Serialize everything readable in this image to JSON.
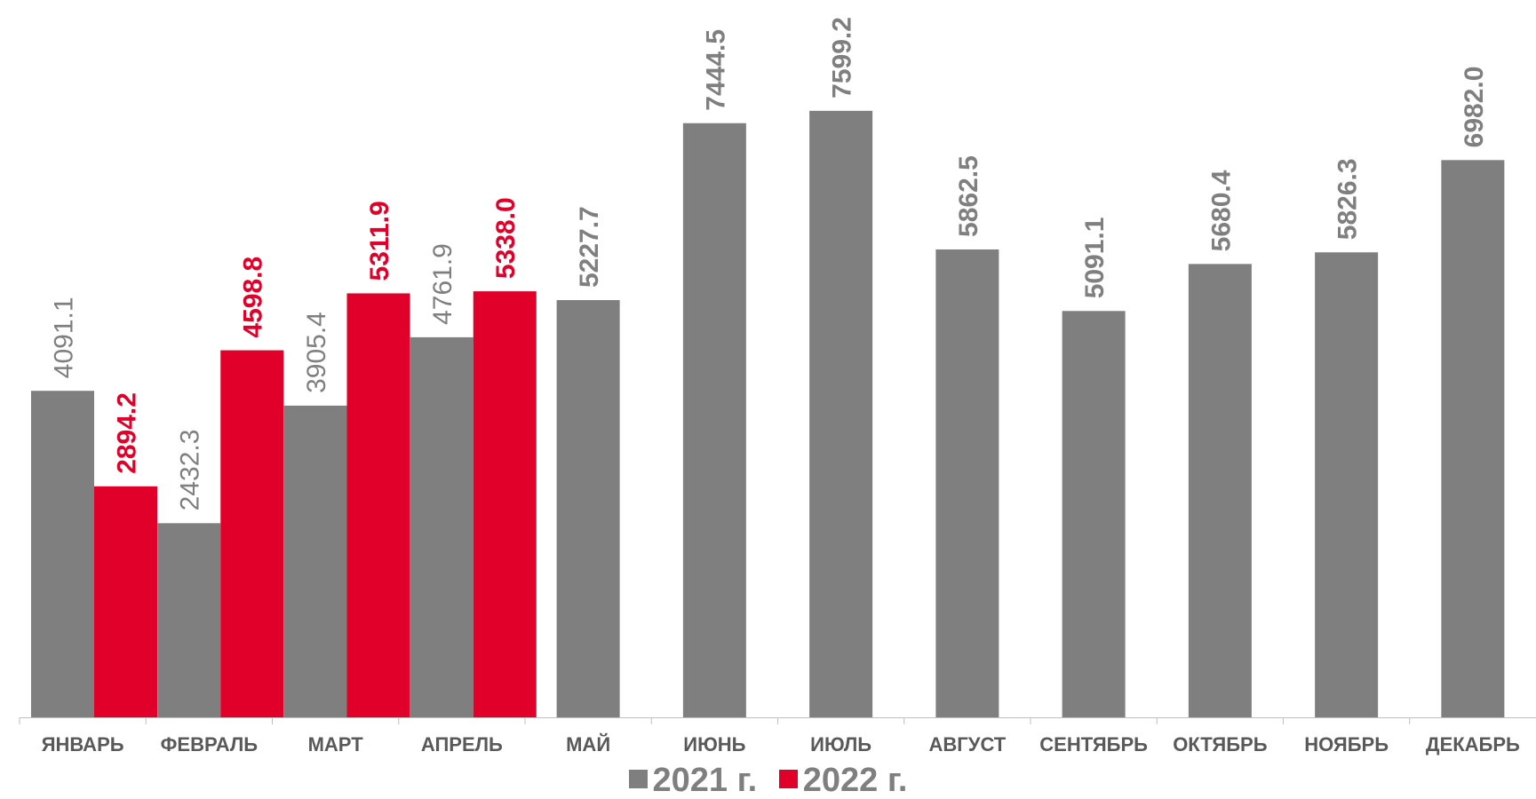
{
  "chart_data": {
    "type": "bar",
    "categories": [
      "ЯНВАРЬ",
      "ФЕВРАЛЬ",
      "МАРТ",
      "АПРЕЛЬ",
      "МАЙ",
      "ИЮНЬ",
      "ИЮЛЬ",
      "АВГУСТ",
      "СЕНТЯБРЬ",
      "ОКТЯБРЬ",
      "НОЯБРЬ",
      "ДЕКАБРЬ"
    ],
    "series": [
      {
        "name": "2021 г.",
        "color": "#7f7f7f",
        "values": [
          4091.1,
          2432.3,
          3905.4,
          4761.9,
          5227.7,
          7444.5,
          7599.2,
          5862.5,
          5091.1,
          5680.4,
          5826.3,
          6982.0
        ],
        "labels": [
          "4091.1",
          "2432.3",
          "3905.4",
          "4761.9",
          "5227.7",
          "7444.5",
          "7599.2",
          "5862.5",
          "5091.1",
          "5680.4",
          "5826.3",
          "6982.0"
        ]
      },
      {
        "name": "2022 г.",
        "color": "#e0002a",
        "values": [
          2894.2,
          4598.8,
          5311.9,
          5338.0,
          null,
          null,
          null,
          null,
          null,
          null,
          null,
          null
        ],
        "labels": [
          "2894.2",
          "4598.8",
          "5311.9",
          "5338.0",
          "",
          "",
          "",
          "",
          "",
          "",
          "",
          ""
        ]
      }
    ],
    "ylim": [
      0,
      8000
    ],
    "grid": false,
    "legend": "bottom-center",
    "data_labels": "rotated-vertical"
  }
}
